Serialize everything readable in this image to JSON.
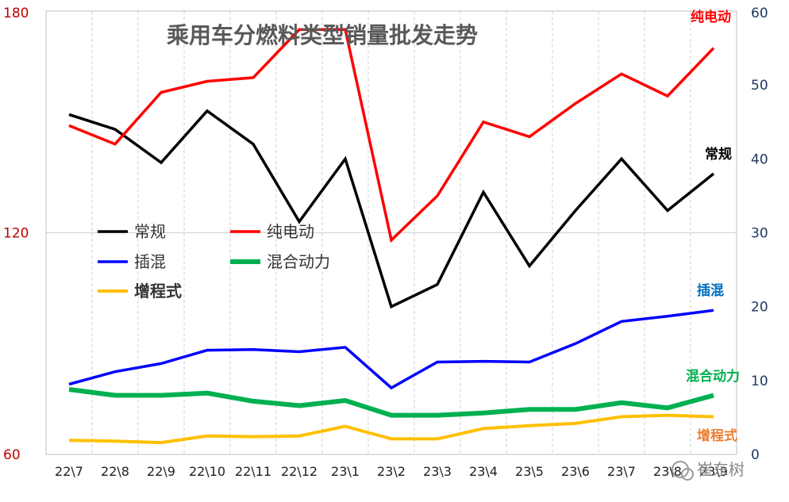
{
  "chart_data": {
    "type": "line",
    "title": "乘用车分燃料类型销量批发走势",
    "categories": [
      "22\\7",
      "22\\8",
      "22\\9",
      "22\\10",
      "22\\11",
      "22\\12",
      "23\\1",
      "23\\2",
      "23\\3",
      "23\\4",
      "23\\5",
      "23\\6",
      "23\\7",
      "23\\8",
      "23\\9"
    ],
    "y_left": {
      "ticks": [
        "60",
        "120",
        "180"
      ],
      "ylim": [
        60,
        180
      ],
      "color": "#c00000"
    },
    "y_right": {
      "ticks": [
        "0",
        "10",
        "20",
        "30",
        "40",
        "50",
        "60"
      ],
      "ylim": [
        0,
        60
      ],
      "color": "#1f3864"
    },
    "grid": "vertical",
    "legend_position": "center-left",
    "series": [
      {
        "name": "常规",
        "axis": "left",
        "color": "#000000",
        "width": 3.5,
        "values": [
          152,
          148,
          139,
          153,
          144,
          123,
          140,
          100,
          106,
          131,
          111,
          126,
          140,
          126,
          136
        ]
      },
      {
        "name": "纯电动",
        "axis": "left",
        "color": "#ff0000",
        "width": 3.5,
        "values": [
          149,
          144,
          158,
          161,
          162,
          175,
          175,
          118,
          130,
          150,
          146,
          155,
          163,
          157,
          170
        ]
      },
      {
        "name": "插混",
        "axis": "right",
        "color": "#0000ff",
        "width": 3.5,
        "values": [
          9.5,
          11.2,
          12.3,
          14.1,
          14.2,
          13.9,
          14.5,
          9.0,
          12.5,
          12.6,
          12.5,
          15.0,
          18.0,
          18.7,
          19.5
        ]
      },
      {
        "name": "混合动力",
        "axis": "right",
        "color": "#00b050",
        "width": 6,
        "values": [
          8.8,
          8.0,
          8.0,
          8.3,
          7.2,
          6.6,
          7.3,
          5.3,
          5.3,
          5.6,
          6.1,
          6.1,
          7.0,
          6.3,
          8.0
        ]
      },
      {
        "name": "增程式",
        "axis": "right",
        "color": "#ffc000",
        "width": 4,
        "values": [
          1.9,
          1.8,
          1.6,
          2.5,
          2.4,
          2.5,
          3.8,
          2.1,
          2.1,
          3.5,
          3.9,
          4.2,
          5.1,
          5.3,
          5.1
        ]
      }
    ],
    "series_labels": [
      {
        "text": "纯电动",
        "color": "#ff0000"
      },
      {
        "text": "常规",
        "color": "#000000"
      },
      {
        "text": "插混",
        "color": "#0070c0"
      },
      {
        "text": "混合动力",
        "color": "#00b050"
      },
      {
        "text": "增程式",
        "color": "#ed7d31"
      }
    ]
  },
  "watermark": {
    "text": "崔东树",
    "icon": "wechat-icon"
  }
}
